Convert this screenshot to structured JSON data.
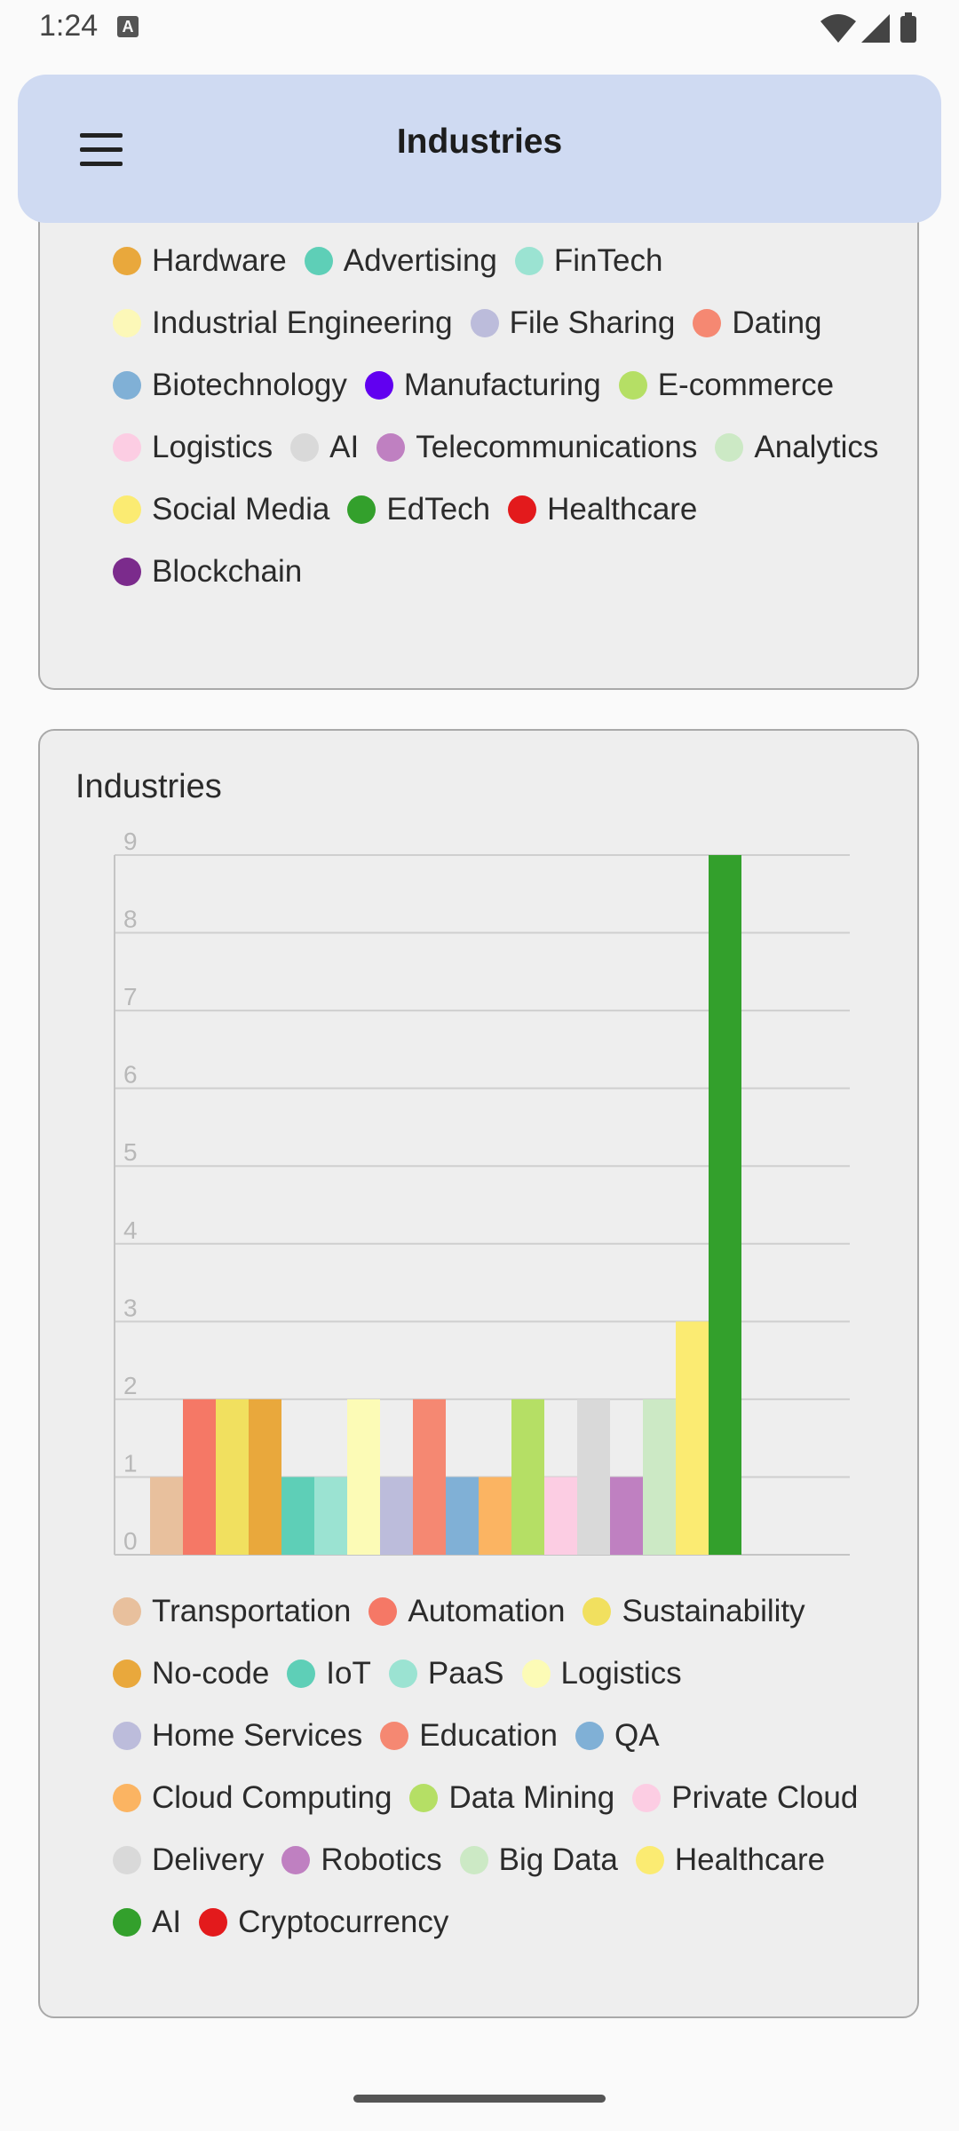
{
  "status": {
    "time": "1:24",
    "a_icon": "A"
  },
  "app_bar": {
    "title": "Industries",
    "menu_icon": "menu-icon"
  },
  "top_legend": [
    {
      "label": "Hardware",
      "color": "#e9a83c"
    },
    {
      "label": "Advertising",
      "color": "#5ecfb7"
    },
    {
      "label": "FinTech",
      "color": "#9be3d2"
    },
    {
      "label": "Industrial Engineering",
      "color": "#fcf8b8"
    },
    {
      "label": "File Sharing",
      "color": "#bcbcdb"
    },
    {
      "label": "Dating",
      "color": "#f58872"
    },
    {
      "label": "Biotechnology",
      "color": "#80b0d6"
    },
    {
      "label": "Manufacturing",
      "color": "#6100f0"
    },
    {
      "label": "E-commerce",
      "color": "#b5df65"
    },
    {
      "label": "Logistics",
      "color": "#fccde3"
    },
    {
      "label": "AI",
      "color": "#d9d9d9"
    },
    {
      "label": "Telecommunications",
      "color": "#bf80c1"
    },
    {
      "label": "Analytics",
      "color": "#cce9c5"
    },
    {
      "label": "Social Media",
      "color": "#fbeb72"
    },
    {
      "label": "EdTech",
      "color": "#33a02c"
    },
    {
      "label": "Healthcare",
      "color": "#e31a1c"
    },
    {
      "label": "Blockchain",
      "color": "#7b2b8c"
    }
  ],
  "chart_data": {
    "type": "bar",
    "title": "Industries",
    "ylim": [
      0,
      9
    ],
    "yticks": [
      0,
      1,
      2,
      3,
      4,
      5,
      6,
      7,
      8,
      9
    ],
    "grid": true,
    "legend_position": "bottom",
    "categories": [
      "Transportation",
      "Automation",
      "Sustainability",
      "No-code",
      "IoT",
      "PaaS",
      "Logistics",
      "Home Services",
      "Education",
      "QA",
      "Cloud Computing",
      "Data Mining",
      "Private Cloud",
      "Delivery",
      "Robotics",
      "Big Data",
      "Healthcare",
      "AI",
      "Cryptocurrency"
    ],
    "values": [
      1,
      2,
      2,
      2,
      1,
      1,
      2,
      1,
      2,
      1,
      1,
      2,
      1,
      2,
      1,
      2,
      3,
      9,
      0
    ],
    "colors": [
      "#e8c09d",
      "#f57866",
      "#f1e05f",
      "#e9a83c",
      "#5ecfb7",
      "#9be3d2",
      "#fcfbb6",
      "#bcbcdb",
      "#f58872",
      "#80b0d6",
      "#fbb462",
      "#b5df65",
      "#fccde3",
      "#d9d9d9",
      "#bf80c1",
      "#cce9c5",
      "#fbeb72",
      "#33a02c",
      "#e31a1c"
    ]
  }
}
